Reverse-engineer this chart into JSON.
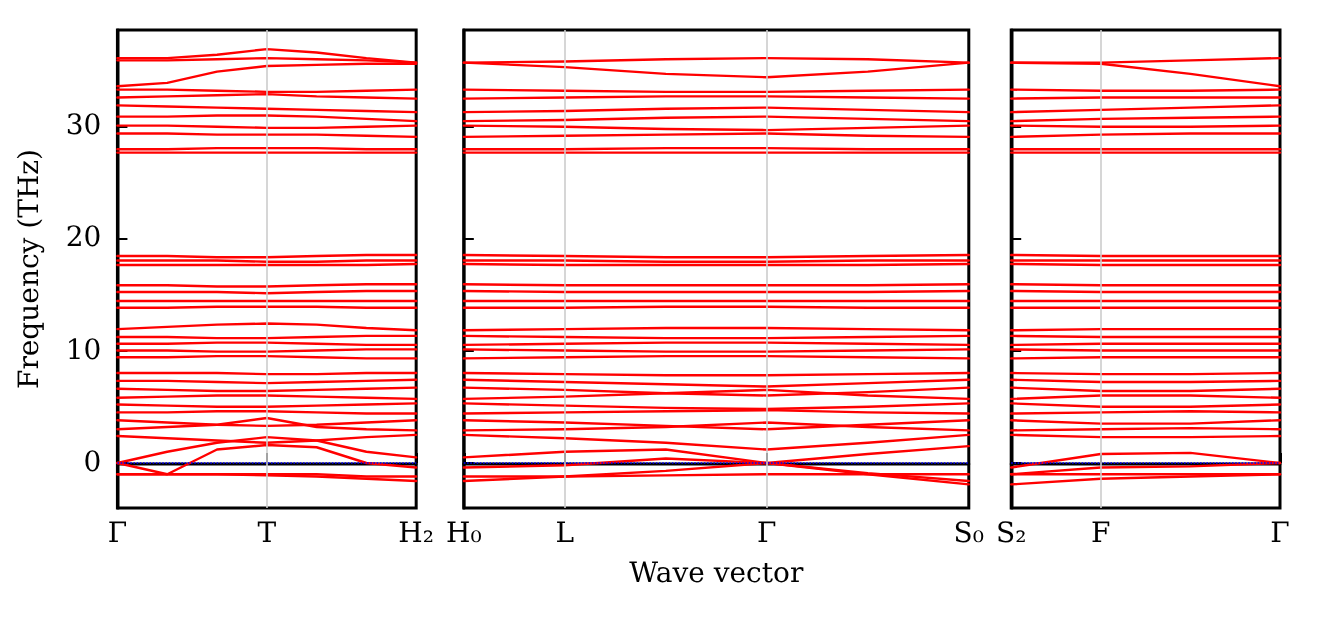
{
  "chart_data": [
    {
      "type": "line",
      "ylabel": "Frequency (THz)",
      "categories": [
        "Γ",
        null,
        null,
        "T",
        null,
        null,
        "H₂"
      ],
      "ylim": [
        -4,
        38.5
      ],
      "yticks": [
        0,
        10,
        20,
        30
      ],
      "marker": "none",
      "line_style": "solid",
      "ref_lines": [
        {
          "axis": "y",
          "value": 0,
          "color": "#0000ff",
          "line_style": "dotted"
        },
        {
          "axis": "x",
          "value": "T",
          "color": "#cccccc",
          "line_style": "solid"
        }
      ],
      "series": [
        {
          "color": "#ff0000",
          "values": [
            36.0,
            36.0,
            36.3,
            36.8,
            36.5,
            36.0,
            35.6
          ]
        },
        {
          "color": "#ff0000",
          "values": [
            35.8,
            35.8,
            35.9,
            36.0,
            35.9,
            35.8,
            35.6
          ]
        },
        {
          "color": "#ff0000",
          "values": [
            33.5,
            33.8,
            34.8,
            35.3,
            35.4,
            35.5,
            35.5
          ]
        },
        {
          "color": "#ff0000",
          "values": [
            33.2,
            33.2,
            33.1,
            33.0,
            33.0,
            33.1,
            33.2
          ]
        },
        {
          "color": "#ff0000",
          "values": [
            32.5,
            32.6,
            32.7,
            32.8,
            32.6,
            32.5,
            32.4
          ]
        },
        {
          "color": "#ff0000",
          "values": [
            31.8,
            31.7,
            31.6,
            31.5,
            31.4,
            31.3,
            31.2
          ]
        },
        {
          "color": "#ff0000",
          "values": [
            30.8,
            30.8,
            30.9,
            30.9,
            30.8,
            30.6,
            30.4
          ]
        },
        {
          "color": "#ff0000",
          "values": [
            30.0,
            30.0,
            29.9,
            29.8,
            29.8,
            29.9,
            30.0
          ]
        },
        {
          "color": "#ff0000",
          "values": [
            29.3,
            29.3,
            29.2,
            29.2,
            29.2,
            29.1,
            29.0
          ]
        },
        {
          "color": "#ff0000",
          "values": [
            27.9,
            27.9,
            28.0,
            28.0,
            28.0,
            27.9,
            27.9
          ]
        },
        {
          "color": "#ff0000",
          "values": [
            27.6,
            27.6,
            27.6,
            27.6,
            27.6,
            27.6,
            27.6
          ]
        },
        {
          "color": "#ff0000",
          "values": [
            18.4,
            18.4,
            18.3,
            18.3,
            18.4,
            18.5,
            18.5
          ]
        },
        {
          "color": "#ff0000",
          "values": [
            18.0,
            18.0,
            18.0,
            17.9,
            17.9,
            18.0,
            18.0
          ]
        },
        {
          "color": "#ff0000",
          "values": [
            17.6,
            17.6,
            17.6,
            17.6,
            17.6,
            17.6,
            17.7
          ]
        },
        {
          "color": "#ff0000",
          "values": [
            15.8,
            15.8,
            15.7,
            15.7,
            15.8,
            15.9,
            15.9
          ]
        },
        {
          "color": "#ff0000",
          "values": [
            15.2,
            15.2,
            15.2,
            15.1,
            15.2,
            15.3,
            15.3
          ]
        },
        {
          "color": "#ff0000",
          "values": [
            14.4,
            14.4,
            14.4,
            14.4,
            14.4,
            14.4,
            14.4
          ]
        },
        {
          "color": "#ff0000",
          "values": [
            13.8,
            13.8,
            13.9,
            13.9,
            13.9,
            13.8,
            13.8
          ]
        },
        {
          "color": "#ff0000",
          "values": [
            11.9,
            12.1,
            12.3,
            12.4,
            12.3,
            12.0,
            11.8
          ]
        },
        {
          "color": "#ff0000",
          "values": [
            11.2,
            11.2,
            11.1,
            11.1,
            11.2,
            11.3,
            11.3
          ]
        },
        {
          "color": "#ff0000",
          "values": [
            10.6,
            10.6,
            10.7,
            10.7,
            10.6,
            10.5,
            10.5
          ]
        },
        {
          "color": "#ff0000",
          "values": [
            10.0,
            10.0,
            9.9,
            9.9,
            10.0,
            10.1,
            10.1
          ]
        },
        {
          "color": "#ff0000",
          "values": [
            9.4,
            9.4,
            9.5,
            9.5,
            9.4,
            9.3,
            9.3
          ]
        },
        {
          "color": "#ff0000",
          "values": [
            8.0,
            8.0,
            8.0,
            7.9,
            7.9,
            8.0,
            8.0
          ]
        },
        {
          "color": "#ff0000",
          "values": [
            7.3,
            7.3,
            7.2,
            7.1,
            7.2,
            7.3,
            7.4
          ]
        },
        {
          "color": "#ff0000",
          "values": [
            6.6,
            6.5,
            6.4,
            6.4,
            6.5,
            6.6,
            6.7
          ]
        },
        {
          "color": "#ff0000",
          "values": [
            5.8,
            5.9,
            6.0,
            6.0,
            5.9,
            5.8,
            5.7
          ]
        },
        {
          "color": "#ff0000",
          "values": [
            5.2,
            5.1,
            5.0,
            5.0,
            5.1,
            5.2,
            5.3
          ]
        },
        {
          "color": "#ff0000",
          "values": [
            4.5,
            4.5,
            4.6,
            4.6,
            4.5,
            4.4,
            4.4
          ]
        },
        {
          "color": "#ff0000",
          "values": [
            3.8,
            3.6,
            3.4,
            3.3,
            3.4,
            3.6,
            3.8
          ]
        },
        {
          "color": "#ff0000",
          "values": [
            3.0,
            3.2,
            3.4,
            4.0,
            3.2,
            3.0,
            2.9
          ]
        },
        {
          "color": "#ff0000",
          "values": [
            2.4,
            2.2,
            2.0,
            1.8,
            2.0,
            2.3,
            2.5
          ]
        },
        {
          "color": "#ff0000",
          "values": [
            0.0,
            1.0,
            1.8,
            2.3,
            2.0,
            1.0,
            0.5
          ]
        },
        {
          "color": "#ff0000",
          "values": [
            0.0,
            -1.0,
            1.2,
            1.6,
            1.4,
            0.0,
            -0.4
          ]
        },
        {
          "color": "#ff0000",
          "values": [
            -1.0,
            -1.0,
            -1.0,
            -1.1,
            -1.2,
            -1.4,
            -1.6
          ]
        },
        {
          "color": "#ff0000",
          "values": [
            -1.0,
            -1.0,
            -1.0,
            -1.0,
            -1.0,
            -1.2,
            -1.2
          ]
        }
      ]
    },
    {
      "type": "line",
      "xlabel": "Wave vector",
      "categories": [
        "H₀",
        "L",
        null,
        "Γ",
        null,
        "S₀"
      ],
      "ylim": [
        -4,
        38.5
      ],
      "yticks": [
        {
          "value": 0,
          "label": null
        },
        {
          "value": 10,
          "label": null
        },
        {
          "value": 20,
          "label": null
        },
        {
          "value": 30,
          "label": null
        }
      ],
      "marker": "none",
      "line_style": "solid",
      "tick_labels": "x",
      "ref_lines": [
        {
          "axis": "y",
          "value": 0,
          "color": "#0000ff",
          "line_style": "dotted"
        },
        {
          "axis": "x",
          "value": "L",
          "color": "#cccccc",
          "line_style": "solid"
        },
        {
          "axis": "x",
          "value": "Γ",
          "color": "#cccccc",
          "line_style": "solid"
        }
      ],
      "series": [
        {
          "color": "#ff0000",
          "values": [
            35.6,
            35.7,
            35.9,
            36.0,
            35.9,
            35.6
          ]
        },
        {
          "color": "#ff0000",
          "values": [
            35.6,
            35.2,
            34.6,
            34.3,
            34.8,
            35.6
          ]
        },
        {
          "color": "#ff0000",
          "values": [
            33.2,
            33.1,
            33.0,
            33.0,
            33.1,
            33.2
          ]
        },
        {
          "color": "#ff0000",
          "values": [
            32.4,
            32.5,
            32.6,
            32.6,
            32.5,
            32.4
          ]
        },
        {
          "color": "#ff0000",
          "values": [
            31.2,
            31.3,
            31.5,
            31.6,
            31.4,
            31.2
          ]
        },
        {
          "color": "#ff0000",
          "values": [
            30.4,
            30.5,
            30.7,
            30.8,
            30.6,
            30.4
          ]
        },
        {
          "color": "#ff0000",
          "values": [
            30.0,
            29.9,
            29.7,
            29.6,
            29.8,
            30.0
          ]
        },
        {
          "color": "#ff0000",
          "values": [
            29.0,
            29.1,
            29.2,
            29.3,
            29.1,
            29.0
          ]
        },
        {
          "color": "#ff0000",
          "values": [
            27.9,
            27.9,
            28.0,
            28.0,
            27.9,
            27.9
          ]
        },
        {
          "color": "#ff0000",
          "values": [
            27.6,
            27.6,
            27.6,
            27.6,
            27.6,
            27.6
          ]
        },
        {
          "color": "#ff0000",
          "values": [
            18.5,
            18.4,
            18.3,
            18.3,
            18.4,
            18.5
          ]
        },
        {
          "color": "#ff0000",
          "values": [
            18.0,
            18.0,
            17.9,
            17.9,
            18.0,
            18.0
          ]
        },
        {
          "color": "#ff0000",
          "values": [
            17.7,
            17.6,
            17.6,
            17.6,
            17.6,
            17.7
          ]
        },
        {
          "color": "#ff0000",
          "values": [
            15.9,
            15.8,
            15.8,
            15.8,
            15.8,
            15.9
          ]
        },
        {
          "color": "#ff0000",
          "values": [
            15.3,
            15.2,
            15.2,
            15.2,
            15.2,
            15.3
          ]
        },
        {
          "color": "#ff0000",
          "values": [
            14.4,
            14.4,
            14.4,
            14.4,
            14.4,
            14.4
          ]
        },
        {
          "color": "#ff0000",
          "values": [
            13.8,
            13.8,
            13.9,
            13.9,
            13.8,
            13.8
          ]
        },
        {
          "color": "#ff0000",
          "values": [
            11.8,
            11.9,
            12.0,
            12.0,
            11.9,
            11.8
          ]
        },
        {
          "color": "#ff0000",
          "values": [
            11.3,
            11.2,
            11.1,
            11.1,
            11.2,
            11.3
          ]
        },
        {
          "color": "#ff0000",
          "values": [
            10.5,
            10.6,
            10.7,
            10.7,
            10.6,
            10.5
          ]
        },
        {
          "color": "#ff0000",
          "values": [
            10.1,
            10.0,
            9.9,
            9.9,
            10.0,
            10.1
          ]
        },
        {
          "color": "#ff0000",
          "values": [
            9.3,
            9.4,
            9.5,
            9.5,
            9.4,
            9.3
          ]
        },
        {
          "color": "#ff0000",
          "values": [
            8.0,
            7.9,
            7.8,
            7.8,
            7.9,
            8.0
          ]
        },
        {
          "color": "#ff0000",
          "values": [
            7.4,
            7.2,
            7.0,
            6.8,
            7.1,
            7.4
          ]
        },
        {
          "color": "#ff0000",
          "values": [
            6.7,
            6.5,
            6.2,
            6.0,
            6.3,
            6.7
          ]
        },
        {
          "color": "#ff0000",
          "values": [
            5.7,
            5.9,
            6.2,
            6.5,
            6.0,
            5.7
          ]
        },
        {
          "color": "#ff0000",
          "values": [
            5.3,
            5.1,
            4.9,
            4.8,
            5.0,
            5.3
          ]
        },
        {
          "color": "#ff0000",
          "values": [
            4.4,
            4.5,
            4.6,
            4.7,
            4.5,
            4.4
          ]
        },
        {
          "color": "#ff0000",
          "values": [
            3.8,
            3.6,
            3.3,
            3.0,
            3.4,
            3.8
          ]
        },
        {
          "color": "#ff0000",
          "values": [
            2.9,
            3.0,
            3.2,
            3.6,
            3.2,
            2.9
          ]
        },
        {
          "color": "#ff0000",
          "values": [
            2.5,
            2.2,
            1.8,
            1.2,
            1.8,
            2.5
          ]
        },
        {
          "color": "#ff0000",
          "values": [
            0.5,
            1.0,
            1.2,
            0.0,
            -0.9,
            -1.6
          ]
        },
        {
          "color": "#ff0000",
          "values": [
            -0.4,
            -0.2,
            0.4,
            0.0,
            0.8,
            1.5
          ]
        },
        {
          "color": "#ff0000",
          "values": [
            -1.6,
            -1.2,
            -0.7,
            0.0,
            -1.0,
            -1.9
          ]
        },
        {
          "color": "#ff0000",
          "values": [
            -1.2,
            -1.2,
            -1.1,
            -1.0,
            -1.0,
            -1.0
          ]
        }
      ]
    },
    {
      "type": "line",
      "categories": [
        "S₂",
        "F",
        null,
        "Γ"
      ],
      "ylim": [
        -4,
        38.5
      ],
      "yticks": [
        {
          "value": 0,
          "label": null
        },
        {
          "value": 10,
          "label": null
        },
        {
          "value": 20,
          "label": null
        },
        {
          "value": 30,
          "label": null
        }
      ],
      "marker": "none",
      "line_style": "solid",
      "tick_labels": "x",
      "ref_lines": [
        {
          "axis": "y",
          "value": 0,
          "color": "#0000ff",
          "line_style": "dotted"
        },
        {
          "axis": "x",
          "value": "F",
          "color": "#cccccc",
          "line_style": "solid"
        }
      ],
      "series": [
        {
          "color": "#ff0000",
          "values": [
            35.6,
            35.6,
            35.8,
            36.0
          ]
        },
        {
          "color": "#ff0000",
          "values": [
            35.6,
            35.5,
            34.6,
            33.5
          ]
        },
        {
          "color": "#ff0000",
          "values": [
            33.2,
            33.1,
            33.1,
            33.2
          ]
        },
        {
          "color": "#ff0000",
          "values": [
            32.4,
            32.5,
            32.5,
            32.5
          ]
        },
        {
          "color": "#ff0000",
          "values": [
            31.2,
            31.4,
            31.6,
            31.8
          ]
        },
        {
          "color": "#ff0000",
          "values": [
            30.4,
            30.6,
            30.7,
            30.8
          ]
        },
        {
          "color": "#ff0000",
          "values": [
            30.0,
            29.9,
            29.9,
            30.0
          ]
        },
        {
          "color": "#ff0000",
          "values": [
            29.0,
            29.2,
            29.3,
            29.3
          ]
        },
        {
          "color": "#ff0000",
          "values": [
            27.9,
            27.9,
            27.9,
            27.9
          ]
        },
        {
          "color": "#ff0000",
          "values": [
            27.6,
            27.6,
            27.6,
            27.6
          ]
        },
        {
          "color": "#ff0000",
          "values": [
            18.5,
            18.4,
            18.4,
            18.4
          ]
        },
        {
          "color": "#ff0000",
          "values": [
            18.0,
            18.0,
            18.0,
            18.0
          ]
        },
        {
          "color": "#ff0000",
          "values": [
            17.7,
            17.6,
            17.6,
            17.6
          ]
        },
        {
          "color": "#ff0000",
          "values": [
            15.9,
            15.8,
            15.8,
            15.8
          ]
        },
        {
          "color": "#ff0000",
          "values": [
            15.3,
            15.2,
            15.2,
            15.2
          ]
        },
        {
          "color": "#ff0000",
          "values": [
            14.4,
            14.4,
            14.4,
            14.4
          ]
        },
        {
          "color": "#ff0000",
          "values": [
            13.8,
            13.8,
            13.8,
            13.8
          ]
        },
        {
          "color": "#ff0000",
          "values": [
            11.8,
            11.9,
            11.9,
            11.9
          ]
        },
        {
          "color": "#ff0000",
          "values": [
            11.3,
            11.2,
            11.2,
            11.2
          ]
        },
        {
          "color": "#ff0000",
          "values": [
            10.5,
            10.6,
            10.6,
            10.6
          ]
        },
        {
          "color": "#ff0000",
          "values": [
            10.1,
            10.0,
            10.0,
            10.0
          ]
        },
        {
          "color": "#ff0000",
          "values": [
            9.3,
            9.4,
            9.4,
            9.4
          ]
        },
        {
          "color": "#ff0000",
          "values": [
            8.0,
            7.9,
            7.9,
            8.0
          ]
        },
        {
          "color": "#ff0000",
          "values": [
            7.4,
            7.2,
            7.2,
            7.3
          ]
        },
        {
          "color": "#ff0000",
          "values": [
            6.7,
            6.4,
            6.4,
            6.6
          ]
        },
        {
          "color": "#ff0000",
          "values": [
            5.7,
            6.0,
            6.0,
            5.8
          ]
        },
        {
          "color": "#ff0000",
          "values": [
            5.3,
            5.0,
            5.0,
            5.2
          ]
        },
        {
          "color": "#ff0000",
          "values": [
            4.4,
            4.5,
            4.6,
            4.5
          ]
        },
        {
          "color": "#ff0000",
          "values": [
            3.8,
            3.5,
            3.5,
            3.8
          ]
        },
        {
          "color": "#ff0000",
          "values": [
            2.9,
            3.0,
            3.1,
            3.0
          ]
        },
        {
          "color": "#ff0000",
          "values": [
            2.5,
            2.3,
            2.3,
            2.4
          ]
        },
        {
          "color": "#ff0000",
          "values": [
            -0.4,
            0.8,
            0.9,
            0.0
          ]
        },
        {
          "color": "#ff0000",
          "values": [
            -1.0,
            -0.4,
            -0.3,
            0.0
          ]
        },
        {
          "color": "#ff0000",
          "values": [
            -1.9,
            -1.4,
            -1.2,
            -1.0
          ]
        },
        {
          "color": "#ff0000",
          "values": [
            -1.0,
            -1.0,
            -1.0,
            -1.0
          ]
        }
      ]
    }
  ]
}
